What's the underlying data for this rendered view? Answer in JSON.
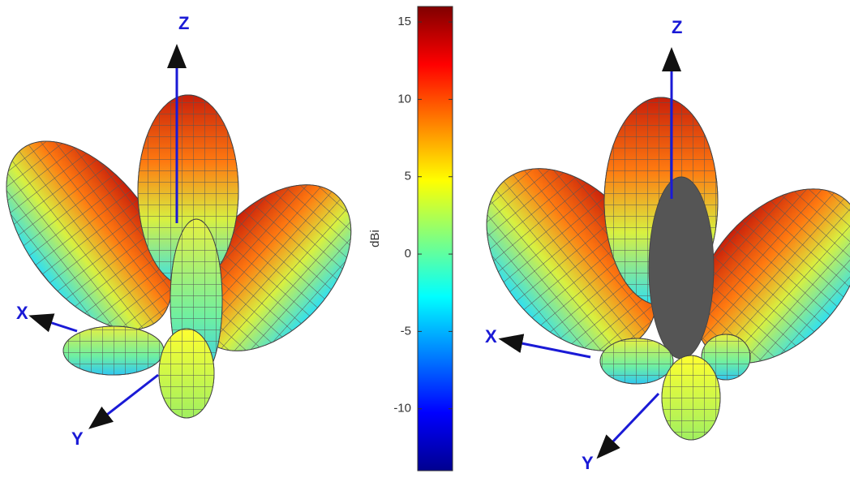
{
  "chart_data": {
    "type": "surface",
    "colorbar": {
      "label": "dBi",
      "lim": [
        -14,
        16
      ],
      "ticks": [
        -10,
        -5,
        0,
        5,
        10,
        15
      ],
      "colormap": [
        "#00008f",
        "#0000ff",
        "#0080ff",
        "#00ffff",
        "#80ff80",
        "#ffff00",
        "#ff8000",
        "#ff0000",
        "#800000"
      ]
    },
    "panels": [
      {
        "axes": [
          "X",
          "Y",
          "Z"
        ]
      },
      {
        "axes": [
          "X",
          "Y",
          "Z"
        ]
      }
    ]
  }
}
